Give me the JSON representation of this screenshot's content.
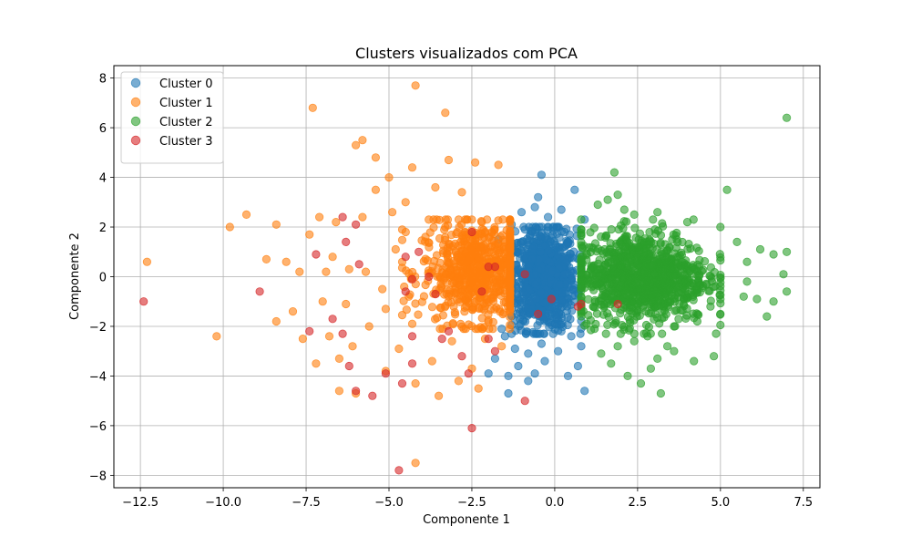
{
  "chart_data": {
    "type": "scatter",
    "title": "Clusters visualizados com PCA",
    "xlabel": "Componente 1",
    "ylabel": "Componente 2",
    "xlim": [
      -13.3,
      8.0
    ],
    "ylim": [
      -8.5,
      8.5
    ],
    "xticks": [
      -12.5,
      -10.0,
      -7.5,
      -5.0,
      -2.5,
      0.0,
      2.5,
      5.0,
      7.5
    ],
    "xtick_labels": [
      "−12.5",
      "−10.0",
      "−7.5",
      "−5.0",
      "−2.5",
      "0.0",
      "2.5",
      "5.0",
      "7.5"
    ],
    "yticks": [
      -8,
      -6,
      -4,
      -2,
      0,
      2,
      4,
      6,
      8
    ],
    "ytick_labels": [
      "−8",
      "−6",
      "−4",
      "−2",
      "0",
      "2",
      "4",
      "6",
      "8"
    ],
    "grid": true,
    "legend_position": "top-left",
    "series": [
      {
        "name": "Cluster 0",
        "color": "#1f77b4",
        "points": [
          [
            -0.4,
            4.1
          ],
          [
            0.6,
            3.5
          ],
          [
            -0.5,
            3.2
          ],
          [
            -0.6,
            2.8
          ],
          [
            -1.0,
            2.6
          ],
          [
            0.2,
            2.7
          ],
          [
            -1.3,
            2.1
          ],
          [
            -0.2,
            2.4
          ],
          [
            0.9,
            2.3
          ],
          [
            -0.9,
            1.9
          ],
          [
            -1.7,
            1.5
          ],
          [
            0.3,
            1.8
          ],
          [
            -1.5,
            -2.4
          ],
          [
            -1.2,
            -2.9
          ],
          [
            -0.8,
            -3.1
          ],
          [
            -0.4,
            -2.7
          ],
          [
            0.1,
            -3.0
          ],
          [
            0.5,
            -2.4
          ],
          [
            -1.8,
            -3.3
          ],
          [
            -1.1,
            -3.6
          ],
          [
            -0.6,
            -3.9
          ],
          [
            0.7,
            -3.6
          ],
          [
            0.4,
            -4.0
          ],
          [
            -2.0,
            -3.9
          ],
          [
            -1.4,
            -4.0
          ],
          [
            -1.4,
            -4.7
          ],
          [
            -0.8,
            -4.2
          ],
          [
            0.9,
            -4.6
          ],
          [
            -1.6,
            -2.1
          ],
          [
            0.2,
            -2.2
          ],
          [
            -0.3,
            -3.4
          ],
          [
            0.8,
            -2.8
          ]
        ],
        "cloud": {
          "cx": -0.35,
          "cy": -0.1,
          "sx": 0.5,
          "sy": 1.0,
          "n": 900,
          "xmin": -1.3,
          "xmax": 0.8,
          "ymin": -2.3,
          "ymax": 2.0
        }
      },
      {
        "name": "Cluster 1",
        "color": "#ff7f0e",
        "points": [
          [
            -4.2,
            7.7
          ],
          [
            -7.3,
            6.8
          ],
          [
            -3.3,
            6.6
          ],
          [
            -5.8,
            5.5
          ],
          [
            -6.0,
            5.3
          ],
          [
            -5.4,
            4.8
          ],
          [
            -3.2,
            4.7
          ],
          [
            -4.3,
            4.4
          ],
          [
            -1.7,
            4.5
          ],
          [
            -2.4,
            4.6
          ],
          [
            -3.6,
            3.6
          ],
          [
            -5.0,
            4.0
          ],
          [
            -5.4,
            3.5
          ],
          [
            -4.5,
            3.0
          ],
          [
            -2.8,
            3.4
          ],
          [
            -7.1,
            2.4
          ],
          [
            -9.3,
            2.5
          ],
          [
            -9.8,
            2.0
          ],
          [
            -8.4,
            2.1
          ],
          [
            -6.6,
            2.2
          ],
          [
            -5.8,
            2.4
          ],
          [
            -4.9,
            2.6
          ],
          [
            -3.8,
            2.3
          ],
          [
            -7.4,
            1.7
          ],
          [
            -8.1,
            0.6
          ],
          [
            -8.7,
            0.7
          ],
          [
            -7.7,
            0.2
          ],
          [
            -12.3,
            0.6
          ],
          [
            -10.2,
            -2.4
          ],
          [
            -8.4,
            -1.8
          ],
          [
            -7.9,
            -1.4
          ],
          [
            -7.0,
            -1.0
          ],
          [
            -6.3,
            -1.1
          ],
          [
            -7.6,
            -2.5
          ],
          [
            -7.2,
            -3.5
          ],
          [
            -6.5,
            -3.3
          ],
          [
            -6.5,
            -4.6
          ],
          [
            -6.0,
            -4.7
          ],
          [
            -5.1,
            -3.8
          ],
          [
            -4.2,
            -4.3
          ],
          [
            -4.7,
            -2.9
          ],
          [
            -3.7,
            -3.4
          ],
          [
            -3.5,
            -4.8
          ],
          [
            -2.9,
            -4.2
          ],
          [
            -2.3,
            -4.5
          ],
          [
            -4.2,
            -7.5
          ],
          [
            -2.5,
            -3.7
          ],
          [
            -5.6,
            -2.0
          ],
          [
            -3.1,
            -2.6
          ],
          [
            -6.8,
            -2.4
          ],
          [
            -5.2,
            -0.5
          ],
          [
            -6.2,
            0.3
          ],
          [
            -6.7,
            0.8
          ],
          [
            -4.8,
            1.1
          ],
          [
            -5.7,
            0.2
          ],
          [
            -6.9,
            0.2
          ],
          [
            -4.3,
            -1.9
          ],
          [
            -3.9,
            1.6
          ],
          [
            -4.6,
            1.9
          ],
          [
            -2.2,
            2.2
          ],
          [
            -1.9,
            1.8
          ],
          [
            -2.7,
            1.8
          ],
          [
            -3.3,
            2.0
          ],
          [
            -5.1,
            -1.3
          ],
          [
            -4.4,
            -0.8
          ],
          [
            -6.1,
            -2.8
          ],
          [
            -2.1,
            -2.5
          ],
          [
            -1.6,
            -2.8
          ]
        ],
        "cloud": {
          "cx": -2.3,
          "cy": 0.2,
          "sx": 0.85,
          "sy": 1.0,
          "n": 700,
          "xmin": -4.6,
          "xmax": -1.35,
          "ymin": -2.1,
          "ymax": 2.3
        }
      },
      {
        "name": "Cluster 2",
        "color": "#2ca02c",
        "points": [
          [
            7.0,
            6.4
          ],
          [
            1.8,
            4.2
          ],
          [
            5.2,
            3.5
          ],
          [
            1.9,
            3.3
          ],
          [
            1.6,
            3.1
          ],
          [
            2.1,
            2.7
          ],
          [
            1.3,
            2.9
          ],
          [
            2.4,
            2.5
          ],
          [
            3.1,
            2.6
          ],
          [
            4.0,
            2.2
          ],
          [
            5.0,
            2.0
          ],
          [
            5.5,
            1.4
          ],
          [
            6.2,
            1.1
          ],
          [
            7.0,
            1.0
          ],
          [
            5.8,
            0.6
          ],
          [
            6.9,
            0.1
          ],
          [
            7.0,
            -0.6
          ],
          [
            6.1,
            -0.9
          ],
          [
            5.7,
            -0.8
          ],
          [
            6.4,
            -1.6
          ],
          [
            5.0,
            -1.5
          ],
          [
            4.7,
            -1.2
          ],
          [
            4.3,
            -1.8
          ],
          [
            3.6,
            -2.0
          ],
          [
            4.8,
            -3.2
          ],
          [
            3.4,
            -2.8
          ],
          [
            3.1,
            -3.3
          ],
          [
            2.9,
            -3.7
          ],
          [
            4.2,
            -3.4
          ],
          [
            3.2,
            -4.7
          ],
          [
            2.6,
            -4.3
          ],
          [
            2.2,
            -4.0
          ],
          [
            1.7,
            -3.5
          ],
          [
            1.4,
            -3.1
          ],
          [
            2.4,
            -2.6
          ],
          [
            1.2,
            -2.1
          ],
          [
            1.9,
            -2.8
          ],
          [
            2.8,
            -2.4
          ],
          [
            3.6,
            -3.0
          ],
          [
            6.6,
            -1.0
          ],
          [
            5.8,
            -0.2
          ],
          [
            6.6,
            0.9
          ]
        ],
        "cloud": {
          "cx": 2.6,
          "cy": 0.0,
          "sx": 1.0,
          "sy": 0.9,
          "n": 1000,
          "xmin": 0.8,
          "xmax": 5.0,
          "ymin": -2.3,
          "ymax": 2.3
        }
      },
      {
        "name": "Cluster 3",
        "color": "#d62728",
        "points": [
          [
            -12.4,
            -1.0
          ],
          [
            -8.9,
            -0.6
          ],
          [
            -7.2,
            0.9
          ],
          [
            -6.4,
            2.4
          ],
          [
            -6.0,
            2.1
          ],
          [
            -6.3,
            1.4
          ],
          [
            -5.9,
            0.5
          ],
          [
            -4.5,
            0.8
          ],
          [
            -4.1,
            1.0
          ],
          [
            -4.3,
            -0.1
          ],
          [
            -4.5,
            -0.6
          ],
          [
            -3.6,
            -0.7
          ],
          [
            -3.4,
            -2.5
          ],
          [
            -3.2,
            -2.2
          ],
          [
            -2.8,
            -3.2
          ],
          [
            -2.0,
            -2.5
          ],
          [
            -1.8,
            -3.0
          ],
          [
            -6.7,
            -1.7
          ],
          [
            -6.4,
            -2.3
          ],
          [
            -7.4,
            -2.2
          ],
          [
            -6.2,
            -3.6
          ],
          [
            -6.0,
            -4.6
          ],
          [
            -5.1,
            -3.9
          ],
          [
            -5.5,
            -4.8
          ],
          [
            -4.6,
            -4.3
          ],
          [
            -4.3,
            -3.5
          ],
          [
            -4.7,
            -7.8
          ],
          [
            -2.5,
            -6.1
          ],
          [
            -2.6,
            -3.9
          ],
          [
            -0.9,
            -5.0
          ],
          [
            -0.9,
            0.1
          ],
          [
            -0.5,
            -1.5
          ],
          [
            -0.1,
            -0.9
          ],
          [
            0.7,
            -1.2
          ],
          [
            0.8,
            -1.1
          ],
          [
            1.9,
            -1.1
          ],
          [
            -1.8,
            0.4
          ],
          [
            -2.0,
            0.4
          ],
          [
            -2.5,
            1.8
          ],
          [
            -4.3,
            -2.4
          ],
          [
            -2.2,
            -0.6
          ],
          [
            -3.8,
            0.0
          ]
        ]
      }
    ]
  }
}
